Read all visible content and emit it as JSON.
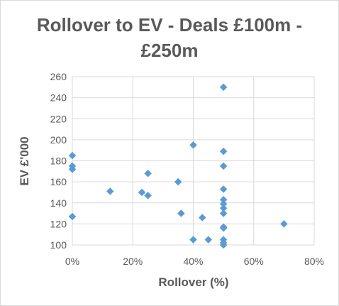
{
  "chart_data": {
    "type": "scatter",
    "title_lines": [
      "Rollover to EV - Deals £100m -",
      "£250m"
    ],
    "xlabel": "Rollover (%)",
    "ylabel": "EV £'000",
    "xlim": [
      0,
      0.8
    ],
    "ylim": [
      100,
      260
    ],
    "x_ticks": [
      0,
      0.2,
      0.4,
      0.6,
      0.8
    ],
    "x_tick_labels": [
      "0%",
      "20%",
      "40%",
      "60%",
      "80%"
    ],
    "y_ticks": [
      100,
      120,
      140,
      160,
      180,
      200,
      220,
      240,
      260
    ],
    "y_tick_labels": [
      "100",
      "120",
      "140",
      "160",
      "180",
      "200",
      "220",
      "240",
      "260"
    ],
    "grid": true,
    "legend": "none",
    "marker": "diamond",
    "marker_color": "#5b9bd5",
    "points": [
      {
        "x": 0.0,
        "y": 185
      },
      {
        "x": 0.0,
        "y": 175
      },
      {
        "x": 0.0,
        "y": 172
      },
      {
        "x": 0.0,
        "y": 127
      },
      {
        "x": 0.125,
        "y": 151
      },
      {
        "x": 0.23,
        "y": 150
      },
      {
        "x": 0.25,
        "y": 168
      },
      {
        "x": 0.25,
        "y": 147
      },
      {
        "x": 0.35,
        "y": 160
      },
      {
        "x": 0.36,
        "y": 130
      },
      {
        "x": 0.4,
        "y": 195
      },
      {
        "x": 0.4,
        "y": 105
      },
      {
        "x": 0.43,
        "y": 126
      },
      {
        "x": 0.45,
        "y": 105
      },
      {
        "x": 0.5,
        "y": 250
      },
      {
        "x": 0.5,
        "y": 189
      },
      {
        "x": 0.5,
        "y": 175
      },
      {
        "x": 0.5,
        "y": 153
      },
      {
        "x": 0.5,
        "y": 143
      },
      {
        "x": 0.5,
        "y": 139
      },
      {
        "x": 0.5,
        "y": 135
      },
      {
        "x": 0.5,
        "y": 130
      },
      {
        "x": 0.5,
        "y": 117
      },
      {
        "x": 0.5,
        "y": 116
      },
      {
        "x": 0.5,
        "y": 105
      },
      {
        "x": 0.5,
        "y": 102
      },
      {
        "x": 0.5,
        "y": 100
      },
      {
        "x": 0.7,
        "y": 120
      }
    ]
  }
}
